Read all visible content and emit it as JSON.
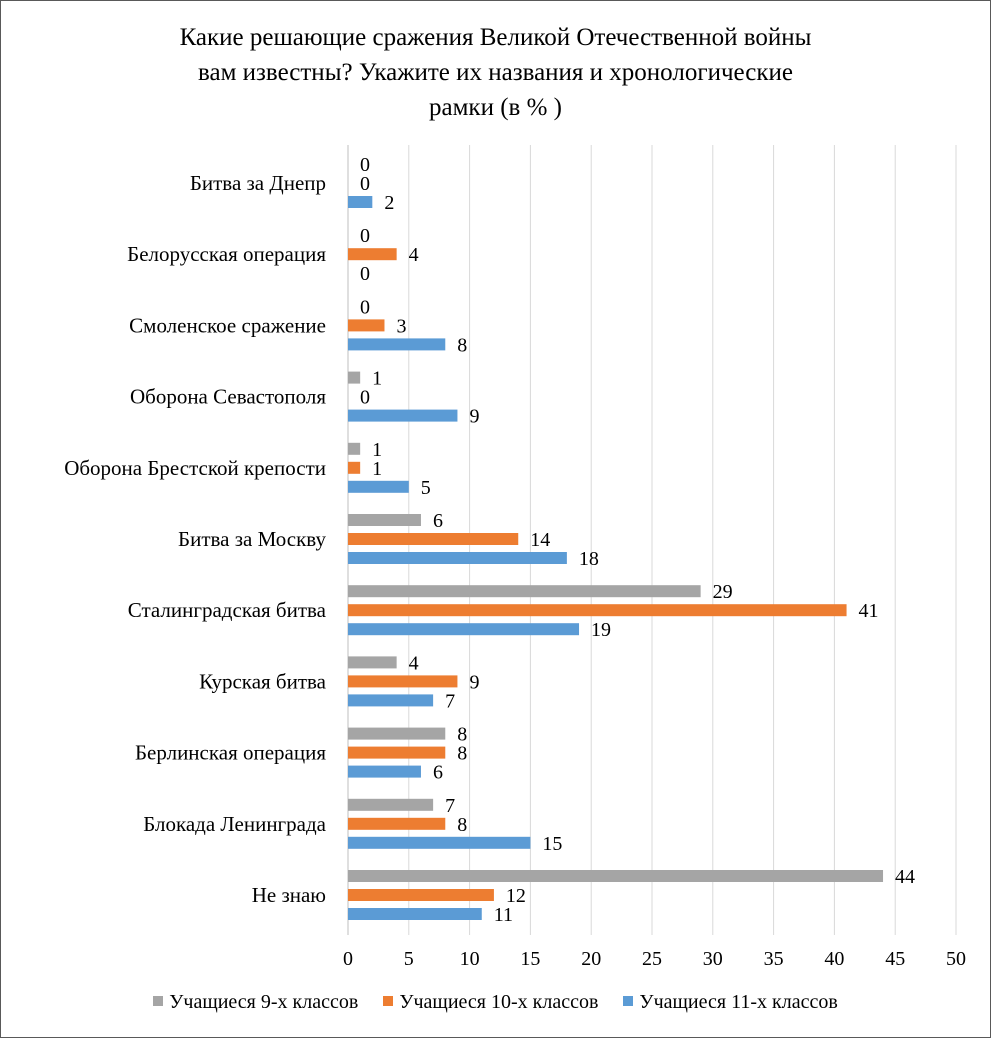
{
  "title_lines": [
    "Какие решающие сражения Великой Отечественной войны",
    "вам известны? Укажите их названия и хронологические",
    "рамки (в % )"
  ],
  "chart_data": {
    "type": "bar",
    "orientation": "horizontal",
    "title": "Какие решающие сражения Великой Отечественной войны вам известны? Укажите их названия и хронологические рамки (в % )",
    "categories": [
      "Битва за Днепр",
      "Белорусская операция",
      "Смоленское сражение",
      "Оборона Севастополя",
      "Оборона Брестской крепости",
      "Битва за Москву",
      "Сталинградская битва",
      "Курская битва",
      "Берлинская операция",
      "Блокада Ленинграда",
      "Не знаю"
    ],
    "series": [
      {
        "name": "Учащиеся 9-х классов",
        "color": "#A5A5A5",
        "values": [
          0,
          0,
          0,
          1,
          1,
          6,
          29,
          4,
          8,
          7,
          44
        ]
      },
      {
        "name": "Учащиеся 10-х классов",
        "color": "#ED7D31",
        "values": [
          0,
          4,
          3,
          0,
          1,
          14,
          41,
          9,
          8,
          8,
          12
        ]
      },
      {
        "name": "Учащиеся 11-х классов",
        "color": "#5B9BD5",
        "values": [
          2,
          0,
          8,
          9,
          5,
          18,
          19,
          7,
          6,
          15,
          11
        ]
      }
    ],
    "xlim": [
      0,
      50
    ],
    "xticks": [
      0,
      5,
      10,
      15,
      20,
      25,
      30,
      35,
      40,
      45,
      50
    ],
    "grid": true,
    "legend": "bottom"
  }
}
